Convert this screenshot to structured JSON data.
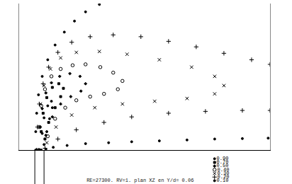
{
  "chart_data": {
    "type": "scatter",
    "title": "RE=27300. RV=1. plan XZ en Y/d= 0.06",
    "color": "#000000",
    "xlim": [
      -2.2,
      25
    ],
    "ylim": [
      0,
      15.9
    ],
    "tick_labels": false,
    "grid": false,
    "series": [
      {
        "name": "0.90",
        "marker": "circle",
        "x": [
          0.2,
          0.3,
          0.5,
          0.9,
          1.3,
          1.4,
          1.1,
          0.8,
          0.5
        ],
        "values": [
          0,
          1.8,
          3.5,
          4.8,
          5.3,
          4.6,
          3.4,
          2,
          0.6
        ]
      },
      {
        "name": "0.70",
        "marker": "square",
        "x": [
          0.1,
          0.2,
          0.4,
          0.8,
          1.4,
          2.1,
          2.6,
          2.3,
          1.7,
          1.0,
          0.6
        ],
        "values": [
          0,
          2,
          4,
          5.7,
          6.8,
          7.2,
          6.7,
          5.8,
          4.6,
          3,
          1.2
        ]
      },
      {
        "name": "0.50",
        "marker": "diamond",
        "x": [
          0,
          0.1,
          0.3,
          0.7,
          1.3,
          2.2,
          3.3,
          4.4,
          5,
          4.5,
          3.4,
          2.3,
          1.4,
          0.7
        ],
        "values": [
          0,
          2.5,
          4.5,
          6.2,
          7.3,
          8,
          8.3,
          8,
          7.2,
          6.4,
          5.8,
          5,
          3.6,
          1.6
        ]
      },
      {
        "name": "0.40",
        "marker": "circle-open",
        "x": [
          -0.1,
          0,
          0.2,
          0.6,
          1.3,
          2.3,
          3.6,
          5,
          6.6,
          8,
          9,
          8.5,
          7,
          5.5,
          4,
          2.8,
          1.7,
          0.9
        ],
        "values": [
          0,
          2.5,
          4.8,
          6.6,
          8,
          8.8,
          9.2,
          9.3,
          9,
          8.4,
          7.5,
          6.6,
          6.1,
          5.8,
          5.4,
          4.6,
          3.4,
          1.5
        ]
      },
      {
        "name": "0.30",
        "marker": "x-thin-open",
        "x": [
          -0.2,
          -0.1,
          0.1,
          0.5,
          1.2,
          2.3,
          4,
          6.5,
          9.5,
          13,
          16.5,
          19,
          20,
          19,
          16,
          12.5,
          9,
          6,
          3.5,
          1.8,
          0.8
        ],
        "values": [
          0,
          2.5,
          5,
          7,
          8.8,
          10,
          10.6,
          10.7,
          10.4,
          9.8,
          9,
          8,
          7,
          6.1,
          5.6,
          5.3,
          5,
          4.6,
          3.8,
          2.5,
          0.8
        ]
      },
      {
        "name": "0.20",
        "marker": "cross-thin-open",
        "x": [
          -0.3,
          -0.2,
          0,
          0.4,
          1,
          2,
          3.5,
          5.5,
          8,
          11,
          14,
          17,
          20,
          23,
          25,
          null,
          0.6,
          2,
          4,
          7,
          10,
          14,
          18,
          22,
          25
        ],
        "values": [
          0,
          2.5,
          5,
          7.2,
          9,
          10.6,
          11.7,
          12.3,
          12.5,
          12.3,
          11.8,
          11.2,
          10.5,
          9.8,
          9.3,
          null,
          0.2,
          1.2,
          2.2,
          3.0,
          3.6,
          4.0,
          4.2,
          4.3,
          4.3
        ]
      },
      {
        "name": "0.10",
        "marker": "circle",
        "x": [
          -0.4,
          -0.4,
          -0.3,
          -0.1,
          0.3,
          0.9,
          1.7,
          2.7,
          3.8,
          5,
          6.5,
          null,
          0.7,
          1.5,
          3,
          5,
          7.5,
          10,
          13,
          16,
          19,
          22,
          24.8
        ],
        "values": [
          0,
          2,
          4,
          6,
          8,
          9.8,
          11.4,
          12.8,
          14,
          15,
          15.8,
          null,
          0.1,
          0.3,
          0.5,
          0.7,
          0.8,
          0.9,
          1.0,
          1.1,
          1.2,
          1.25,
          1.3
        ]
      }
    ]
  }
}
